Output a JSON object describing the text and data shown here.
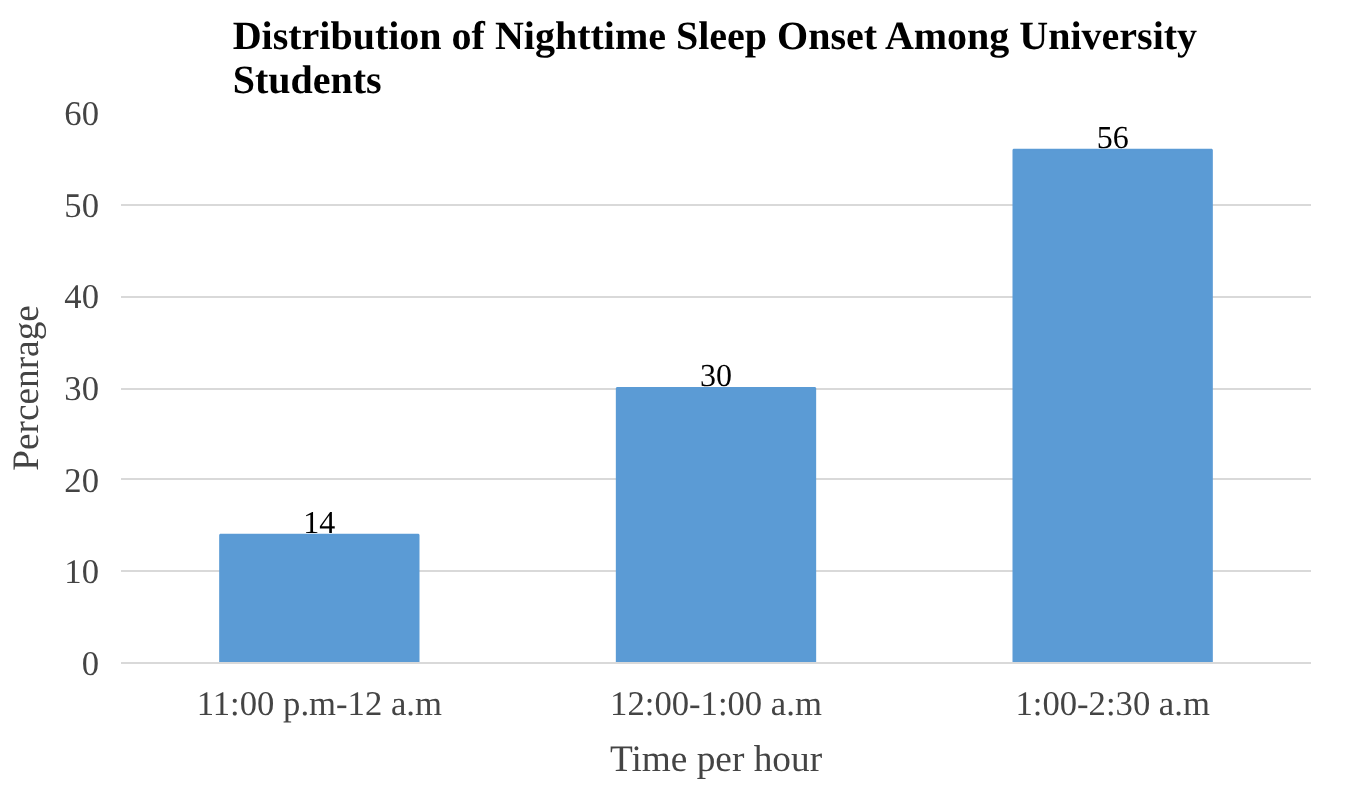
{
  "chart_data": {
    "type": "bar",
    "title": "Distribution of Nighttime Sleep Onset Among University Students",
    "categories": [
      "11:00 p.m-12 a.m",
      "12:00-1:00 a.m",
      "1:00-2:30 a.m"
    ],
    "values": [
      14,
      30,
      56
    ],
    "color": "#5b9bd5",
    "xlabel": "Time per hour",
    "ylabel": "Percenrage",
    "ylim": [
      0,
      60
    ],
    "yticks": [
      0,
      10,
      20,
      30,
      40,
      50,
      60
    ],
    "grid": "y",
    "data_labels": true
  }
}
